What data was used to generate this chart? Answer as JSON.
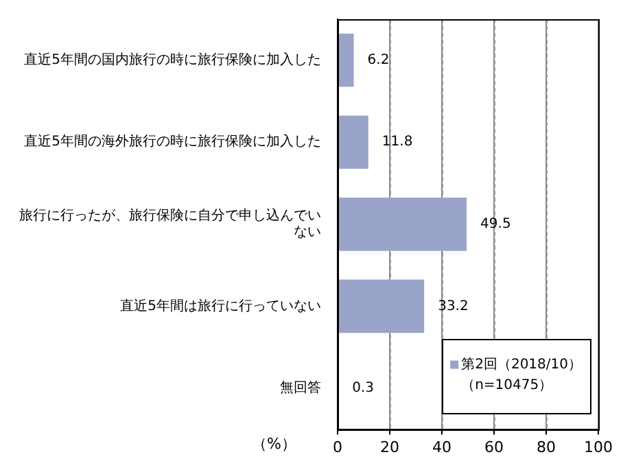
{
  "chart_data": {
    "type": "bar",
    "orientation": "horizontal",
    "xlabel": "（%）",
    "categories": [
      "直近5年間の国内旅行の時に旅行保険に加入した",
      "直近5年間の海外旅行の時に旅行保険に加入した",
      "旅行に行ったが、旅行保険に自分で申し込んでいない",
      "直近5年間は旅行に行っていない",
      "無回答"
    ],
    "series": [
      {
        "name": "第2回（2018/10）（n=10475）",
        "color": "#9aa3c8",
        "values": [
          6.2,
          11.8,
          49.5,
          33.2,
          0.3
        ]
      }
    ],
    "xlim": [
      0,
      100
    ],
    "xticks": [
      0,
      20,
      40,
      60,
      80,
      100
    ],
    "grid": "x",
    "legend": "bottom right",
    "data_labels": true
  }
}
